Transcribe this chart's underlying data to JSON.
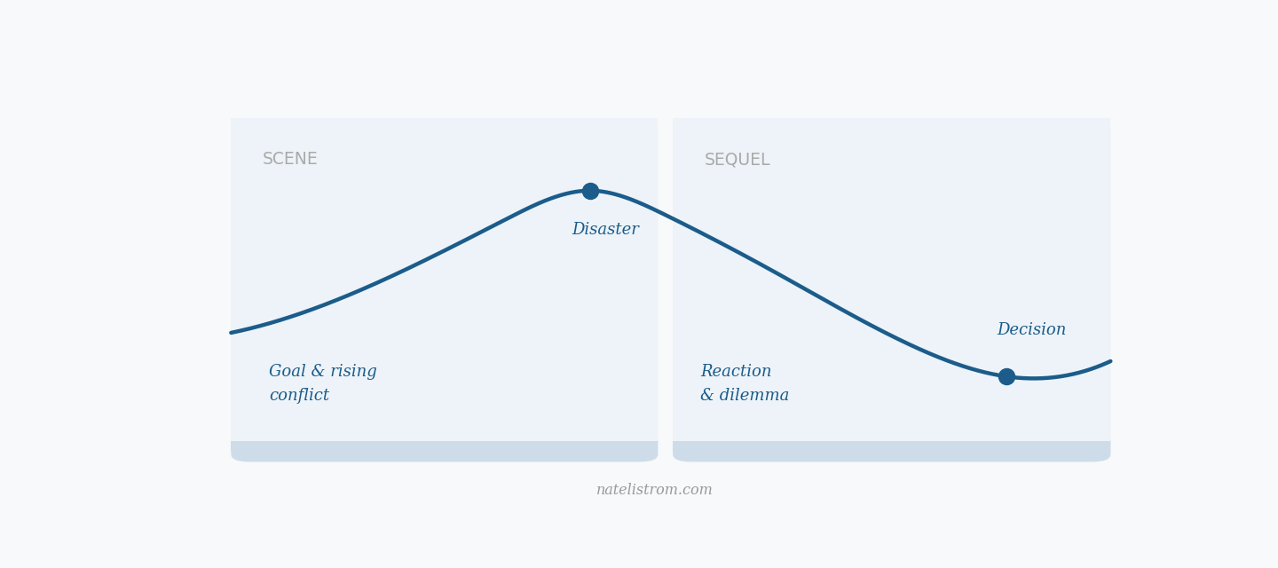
{
  "background_color": "#f8f9fa",
  "box_color": "#edf3f8",
  "box_bottom_color": "#cddce8",
  "curve_color": "#1b5c8a",
  "dot_color": "#1b5c8a",
  "scene_label": "SCENE",
  "sequel_label": "SEQUEL",
  "goal_label": "Goal & rising\nconflict",
  "disaster_label": "Disaster",
  "reaction_label": "Reaction\n& dilemma",
  "decision_label": "Decision",
  "footer_label": "natelistrom.com",
  "scene_label_color": "#aaaaaa",
  "sequel_label_color": "#aaaaaa",
  "text_color": "#1b5c8a",
  "footer_color": "#999999",
  "curve_linewidth": 3.2,
  "dot_markersize": 13
}
